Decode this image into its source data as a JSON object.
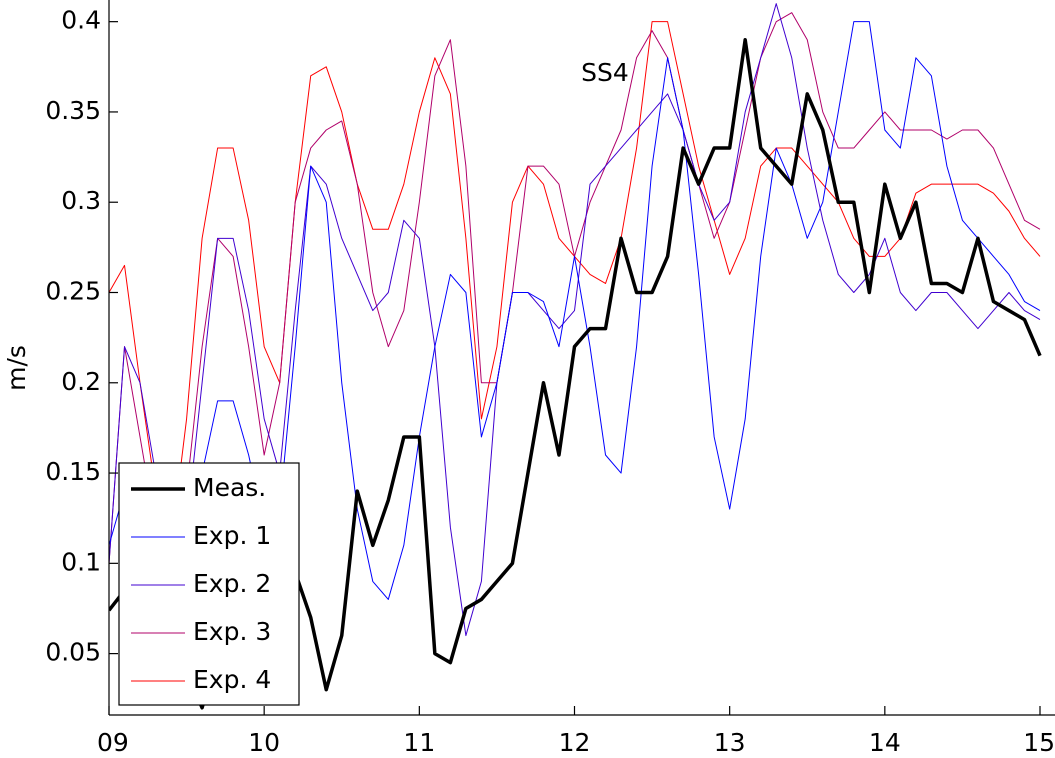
{
  "chart_data": {
    "type": "line",
    "annotation": "SS4",
    "ylabel": "m/s",
    "xlim": [
      9,
      15
    ],
    "xticks": [
      {
        "value": 9,
        "label": "09"
      },
      10,
      11,
      12,
      13,
      14,
      15
    ],
    "ylim": [
      0.016,
      0.412
    ],
    "yticks": [
      0.05,
      0.1,
      0.15,
      0.2,
      0.25,
      0.3,
      0.35,
      0.4
    ],
    "legend": "lower left",
    "x": [
      9.0,
      9.1,
      9.2,
      9.3,
      9.4,
      9.5,
      9.6,
      9.7,
      9.8,
      9.9,
      10.0,
      10.1,
      10.2,
      10.3,
      10.4,
      10.5,
      10.6,
      10.7,
      10.8,
      10.9,
      11.0,
      11.1,
      11.2,
      11.3,
      11.4,
      11.5,
      11.6,
      11.7,
      11.8,
      11.9,
      12.0,
      12.1,
      12.2,
      12.3,
      12.4,
      12.5,
      12.6,
      12.7,
      12.8,
      12.9,
      13.0,
      13.1,
      13.2,
      13.3,
      13.4,
      13.5,
      13.6,
      13.7,
      13.8,
      13.9,
      14.0,
      14.1,
      14.2,
      14.3,
      14.4,
      14.5,
      14.6,
      14.7,
      14.8,
      14.9,
      15.0
    ],
    "series": [
      {
        "name": "Meas.",
        "color": "#000000",
        "linewidth": 3.5,
        "values": [
          0.074,
          0.085,
          0.1,
          0.09,
          0.06,
          0.04,
          0.02,
          0.05,
          0.08,
          0.1,
          0.11,
          0.1,
          0.095,
          0.07,
          0.03,
          0.06,
          0.14,
          0.11,
          0.135,
          0.17,
          0.17,
          0.05,
          0.045,
          0.075,
          0.08,
          0.09,
          0.1,
          0.15,
          0.2,
          0.16,
          0.22,
          0.23,
          0.23,
          0.28,
          0.25,
          0.25,
          0.27,
          0.33,
          0.31,
          0.33,
          0.33,
          0.39,
          0.33,
          0.32,
          0.31,
          0.36,
          0.34,
          0.3,
          0.3,
          0.25,
          0.31,
          0.28,
          0.3,
          0.255,
          0.255,
          0.25,
          0.28,
          0.245,
          0.24,
          0.235,
          0.215
        ]
      },
      {
        "name": "Exp. 1",
        "color": "#0000ff",
        "linewidth": 1,
        "values": [
          0.11,
          0.14,
          0.13,
          0.1,
          0.08,
          0.1,
          0.15,
          0.19,
          0.19,
          0.16,
          0.12,
          0.13,
          0.22,
          0.32,
          0.3,
          0.2,
          0.13,
          0.09,
          0.08,
          0.11,
          0.17,
          0.22,
          0.26,
          0.25,
          0.17,
          0.2,
          0.25,
          0.25,
          0.245,
          0.22,
          0.27,
          0.22,
          0.16,
          0.15,
          0.22,
          0.32,
          0.38,
          0.34,
          0.26,
          0.17,
          0.13,
          0.18,
          0.27,
          0.33,
          0.31,
          0.28,
          0.3,
          0.35,
          0.4,
          0.4,
          0.34,
          0.33,
          0.38,
          0.37,
          0.32,
          0.29,
          0.28,
          0.27,
          0.26,
          0.245,
          0.24
        ]
      },
      {
        "name": "Exp. 2",
        "color": "#4000d0",
        "linewidth": 1,
        "values": [
          0.1,
          0.22,
          0.2,
          0.15,
          0.1,
          0.12,
          0.2,
          0.28,
          0.28,
          0.24,
          0.18,
          0.15,
          0.24,
          0.32,
          0.31,
          0.28,
          0.26,
          0.24,
          0.25,
          0.29,
          0.28,
          0.22,
          0.12,
          0.06,
          0.09,
          0.2,
          0.25,
          0.25,
          0.24,
          0.23,
          0.24,
          0.31,
          0.32,
          0.33,
          0.34,
          0.35,
          0.36,
          0.34,
          0.31,
          0.29,
          0.3,
          0.35,
          0.38,
          0.41,
          0.38,
          0.33,
          0.29,
          0.26,
          0.25,
          0.26,
          0.28,
          0.25,
          0.24,
          0.25,
          0.25,
          0.24,
          0.23,
          0.24,
          0.25,
          0.24,
          0.235
        ]
      },
      {
        "name": "Exp. 3",
        "color": "#b0006a",
        "linewidth": 1,
        "values": [
          0.1,
          0.22,
          0.17,
          0.12,
          0.1,
          0.14,
          0.22,
          0.28,
          0.27,
          0.22,
          0.16,
          0.2,
          0.3,
          0.33,
          0.34,
          0.345,
          0.31,
          0.25,
          0.22,
          0.24,
          0.3,
          0.37,
          0.39,
          0.32,
          0.2,
          0.2,
          0.25,
          0.32,
          0.32,
          0.31,
          0.27,
          0.3,
          0.32,
          0.34,
          0.38,
          0.395,
          0.38,
          0.34,
          0.31,
          0.28,
          0.3,
          0.34,
          0.38,
          0.4,
          0.405,
          0.39,
          0.35,
          0.33,
          0.33,
          0.34,
          0.35,
          0.34,
          0.34,
          0.34,
          0.335,
          0.34,
          0.34,
          0.33,
          0.31,
          0.29,
          0.285
        ]
      },
      {
        "name": "Exp. 4",
        "color": "#ff0000",
        "linewidth": 1,
        "values": [
          0.25,
          0.265,
          0.2,
          0.14,
          0.11,
          0.18,
          0.28,
          0.33,
          0.33,
          0.29,
          0.22,
          0.2,
          0.3,
          0.37,
          0.375,
          0.35,
          0.31,
          0.285,
          0.285,
          0.31,
          0.35,
          0.38,
          0.36,
          0.28,
          0.18,
          0.22,
          0.3,
          0.32,
          0.31,
          0.28,
          0.27,
          0.26,
          0.255,
          0.28,
          0.33,
          0.4,
          0.4,
          0.36,
          0.32,
          0.29,
          0.26,
          0.28,
          0.32,
          0.33,
          0.33,
          0.32,
          0.31,
          0.3,
          0.28,
          0.27,
          0.27,
          0.28,
          0.305,
          0.31,
          0.31,
          0.31,
          0.31,
          0.305,
          0.295,
          0.28,
          0.27
        ]
      }
    ]
  }
}
